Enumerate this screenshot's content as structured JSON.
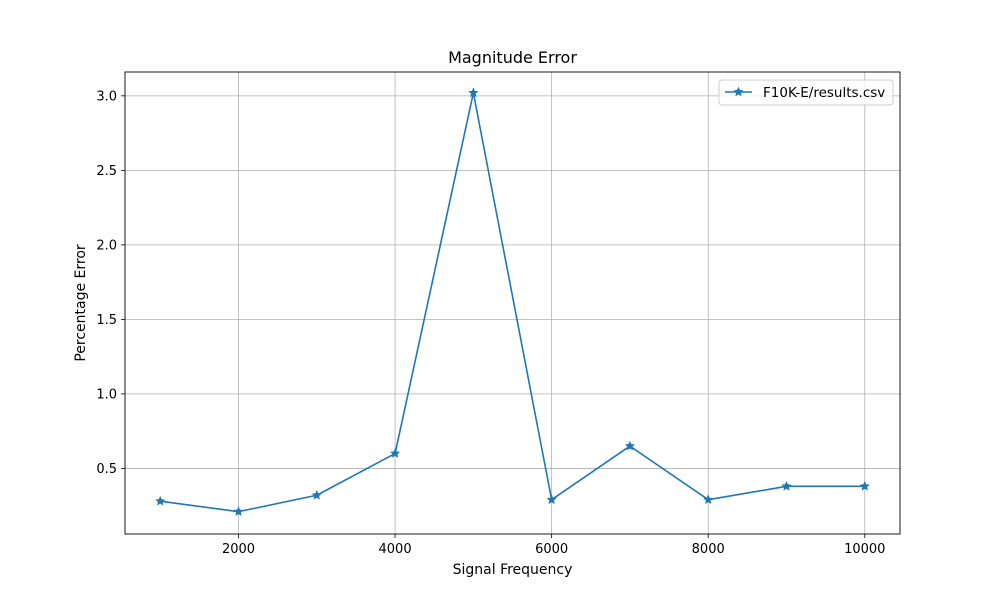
{
  "chart_data": {
    "type": "line",
    "title": "Magnitude Error",
    "xlabel": "Signal Frequency",
    "ylabel": "Percentage Error",
    "x": [
      1000,
      2000,
      3000,
      4000,
      5000,
      6000,
      7000,
      8000,
      9000,
      10000
    ],
    "series": [
      {
        "name": "F10K-E/results.csv",
        "values": [
          0.28,
          0.21,
          0.32,
          0.6,
          3.02,
          0.29,
          0.65,
          0.29,
          0.38,
          0.38
        ],
        "color": "#1f77b4",
        "marker": "star"
      }
    ],
    "xlim": [
      550,
      10450
    ],
    "ylim": [
      0.06,
      3.16
    ],
    "xticks": [
      2000,
      4000,
      6000,
      8000,
      10000
    ],
    "yticks": [
      0.5,
      1.0,
      1.5,
      2.0,
      2.5,
      3.0
    ],
    "xtick_labels": [
      "2000",
      "4000",
      "6000",
      "8000",
      "10000"
    ],
    "ytick_labels": [
      "0.5",
      "1.0",
      "1.5",
      "2.0",
      "2.5",
      "3.0"
    ],
    "grid": true,
    "legend_position": "top-right"
  }
}
